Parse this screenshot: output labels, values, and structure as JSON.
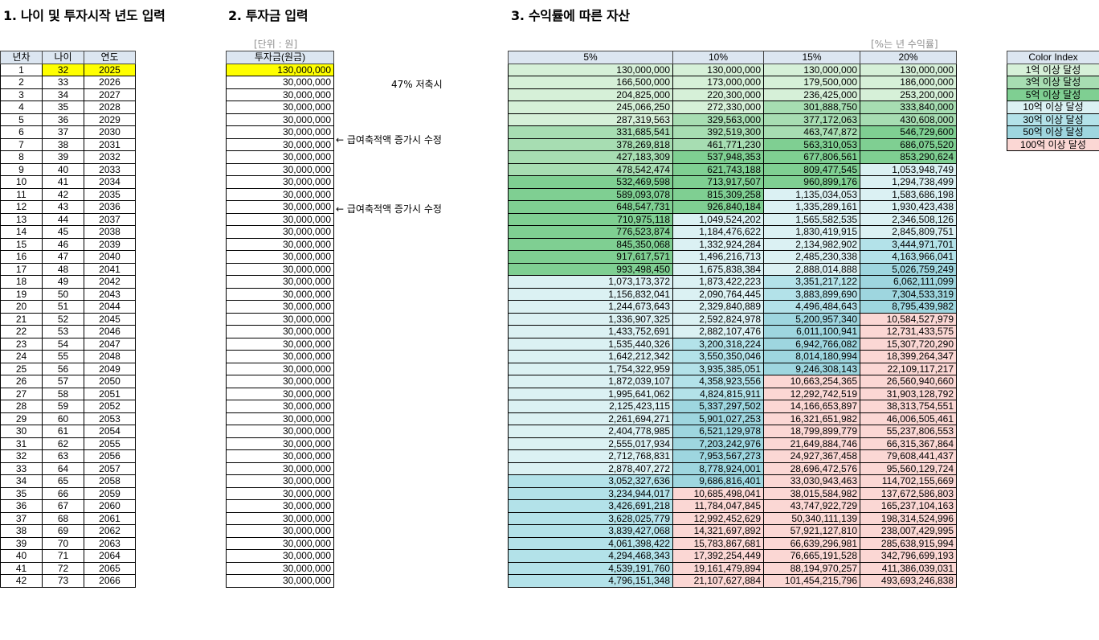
{
  "titles": {
    "section1": "1. 나이 및 투자시작 년도 입력",
    "section2": "2. 투자금 입력",
    "section3": "3. 수익률에 따른 자산"
  },
  "units": {
    "invest": "[단위 : 원]",
    "rate": "[%는 년 수익률]"
  },
  "notes": {
    "savings": "47% 저축시",
    "adjust1": "← 급여축적액 증가시 수정",
    "adjust2": "← 급여축적액 증가시 수정"
  },
  "headers": {
    "year_no": "년차",
    "age": "나이",
    "year": "연도",
    "invest": "투자금(원금)",
    "rates": [
      "5%",
      "10%",
      "15%",
      "20%"
    ],
    "legend": "Color Index"
  },
  "legend_items": [
    {
      "label": "1억 이상 달성",
      "color": "#d6f0d8"
    },
    {
      "label": "3억 이상 달성",
      "color": "#a7ddb2"
    },
    {
      "label": "5억 이상 달성",
      "color": "#7fcf92"
    },
    {
      "label": "10억 이상 달성",
      "color": "#dbf1f3"
    },
    {
      "label": "30억 이상 달성",
      "color": "#b3e2e9"
    },
    {
      "label": "50억 이상 달성",
      "color": "#9ed6df"
    },
    {
      "label": "100억 이상 달성",
      "color": "#fbd7d4"
    }
  ],
  "rows": [
    {
      "n": "1",
      "age": "32",
      "year": "2025",
      "inv": "130,000,000",
      "v": [
        "130,000,000",
        "130,000,000",
        "130,000,000",
        "130,000,000"
      ]
    },
    {
      "n": "2",
      "age": "33",
      "year": "2026",
      "inv": "30,000,000",
      "v": [
        "166,500,000",
        "173,000,000",
        "179,500,000",
        "186,000,000"
      ]
    },
    {
      "n": "3",
      "age": "34",
      "year": "2027",
      "inv": "30,000,000",
      "v": [
        "204,825,000",
        "220,300,000",
        "236,425,000",
        "253,200,000"
      ]
    },
    {
      "n": "4",
      "age": "35",
      "year": "2028",
      "inv": "30,000,000",
      "v": [
        "245,066,250",
        "272,330,000",
        "301,888,750",
        "333,840,000"
      ]
    },
    {
      "n": "5",
      "age": "36",
      "year": "2029",
      "inv": "30,000,000",
      "v": [
        "287,319,563",
        "329,563,000",
        "377,172,063",
        "430,608,000"
      ]
    },
    {
      "n": "6",
      "age": "37",
      "year": "2030",
      "inv": "30,000,000",
      "v": [
        "331,685,541",
        "392,519,300",
        "463,747,872",
        "546,729,600"
      ]
    },
    {
      "n": "7",
      "age": "38",
      "year": "2031",
      "inv": "30,000,000",
      "v": [
        "378,269,818",
        "461,771,230",
        "563,310,053",
        "686,075,520"
      ]
    },
    {
      "n": "8",
      "age": "39",
      "year": "2032",
      "inv": "30,000,000",
      "v": [
        "427,183,309",
        "537,948,353",
        "677,806,561",
        "853,290,624"
      ]
    },
    {
      "n": "9",
      "age": "40",
      "year": "2033",
      "inv": "30,000,000",
      "v": [
        "478,542,474",
        "621,743,188",
        "809,477,545",
        "1,053,948,749"
      ]
    },
    {
      "n": "10",
      "age": "41",
      "year": "2034",
      "inv": "30,000,000",
      "v": [
        "532,469,598",
        "713,917,507",
        "960,899,176",
        "1,294,738,499"
      ]
    },
    {
      "n": "11",
      "age": "42",
      "year": "2035",
      "inv": "30,000,000",
      "v": [
        "589,093,078",
        "815,309,258",
        "1,135,034,053",
        "1,583,686,198"
      ]
    },
    {
      "n": "12",
      "age": "43",
      "year": "2036",
      "inv": "30,000,000",
      "v": [
        "648,547,731",
        "926,840,184",
        "1,335,289,161",
        "1,930,423,438"
      ]
    },
    {
      "n": "13",
      "age": "44",
      "year": "2037",
      "inv": "30,000,000",
      "v": [
        "710,975,118",
        "1,049,524,202",
        "1,565,582,535",
        "2,346,508,126"
      ]
    },
    {
      "n": "14",
      "age": "45",
      "year": "2038",
      "inv": "30,000,000",
      "v": [
        "776,523,874",
        "1,184,476,622",
        "1,830,419,915",
        "2,845,809,751"
      ]
    },
    {
      "n": "15",
      "age": "46",
      "year": "2039",
      "inv": "30,000,000",
      "v": [
        "845,350,068",
        "1,332,924,284",
        "2,134,982,902",
        "3,444,971,701"
      ]
    },
    {
      "n": "16",
      "age": "47",
      "year": "2040",
      "inv": "30,000,000",
      "v": [
        "917,617,571",
        "1,496,216,713",
        "2,485,230,338",
        "4,163,966,041"
      ]
    },
    {
      "n": "17",
      "age": "48",
      "year": "2041",
      "inv": "30,000,000",
      "v": [
        "993,498,450",
        "1,675,838,384",
        "2,888,014,888",
        "5,026,759,249"
      ]
    },
    {
      "n": "18",
      "age": "49",
      "year": "2042",
      "inv": "30,000,000",
      "v": [
        "1,073,173,372",
        "1,873,422,223",
        "3,351,217,122",
        "6,062,111,099"
      ]
    },
    {
      "n": "19",
      "age": "50",
      "year": "2043",
      "inv": "30,000,000",
      "v": [
        "1,156,832,041",
        "2,090,764,445",
        "3,883,899,690",
        "7,304,533,319"
      ]
    },
    {
      "n": "20",
      "age": "51",
      "year": "2044",
      "inv": "30,000,000",
      "v": [
        "1,244,673,643",
        "2,329,840,889",
        "4,496,484,643",
        "8,795,439,982"
      ]
    },
    {
      "n": "21",
      "age": "52",
      "year": "2045",
      "inv": "30,000,000",
      "v": [
        "1,336,907,325",
        "2,592,824,978",
        "5,200,957,340",
        "10,584,527,979"
      ]
    },
    {
      "n": "22",
      "age": "53",
      "year": "2046",
      "inv": "30,000,000",
      "v": [
        "1,433,752,691",
        "2,882,107,476",
        "6,011,100,941",
        "12,731,433,575"
      ]
    },
    {
      "n": "23",
      "age": "54",
      "year": "2047",
      "inv": "30,000,000",
      "v": [
        "1,535,440,326",
        "3,200,318,224",
        "6,942,766,082",
        "15,307,720,290"
      ]
    },
    {
      "n": "24",
      "age": "55",
      "year": "2048",
      "inv": "30,000,000",
      "v": [
        "1,642,212,342",
        "3,550,350,046",
        "8,014,180,994",
        "18,399,264,347"
      ]
    },
    {
      "n": "25",
      "age": "56",
      "year": "2049",
      "inv": "30,000,000",
      "v": [
        "1,754,322,959",
        "3,935,385,051",
        "9,246,308,143",
        "22,109,117,217"
      ]
    },
    {
      "n": "26",
      "age": "57",
      "year": "2050",
      "inv": "30,000,000",
      "v": [
        "1,872,039,107",
        "4,358,923,556",
        "10,663,254,365",
        "26,560,940,660"
      ]
    },
    {
      "n": "27",
      "age": "58",
      "year": "2051",
      "inv": "30,000,000",
      "v": [
        "1,995,641,062",
        "4,824,815,911",
        "12,292,742,519",
        "31,903,128,792"
      ]
    },
    {
      "n": "28",
      "age": "59",
      "year": "2052",
      "inv": "30,000,000",
      "v": [
        "2,125,423,115",
        "5,337,297,502",
        "14,166,653,897",
        "38,313,754,551"
      ]
    },
    {
      "n": "29",
      "age": "60",
      "year": "2053",
      "inv": "30,000,000",
      "v": [
        "2,261,694,271",
        "5,901,027,253",
        "16,321,651,982",
        "46,006,505,461"
      ]
    },
    {
      "n": "30",
      "age": "61",
      "year": "2054",
      "inv": "30,000,000",
      "v": [
        "2,404,778,985",
        "6,521,129,978",
        "18,799,899,779",
        "55,237,806,553"
      ]
    },
    {
      "n": "31",
      "age": "62",
      "year": "2055",
      "inv": "30,000,000",
      "v": [
        "2,555,017,934",
        "7,203,242,976",
        "21,649,884,746",
        "66,315,367,864"
      ]
    },
    {
      "n": "32",
      "age": "63",
      "year": "2056",
      "inv": "30,000,000",
      "v": [
        "2,712,768,831",
        "7,953,567,273",
        "24,927,367,458",
        "79,608,441,437"
      ]
    },
    {
      "n": "33",
      "age": "64",
      "year": "2057",
      "inv": "30,000,000",
      "v": [
        "2,878,407,272",
        "8,778,924,001",
        "28,696,472,576",
        "95,560,129,724"
      ]
    },
    {
      "n": "34",
      "age": "65",
      "year": "2058",
      "inv": "30,000,000",
      "v": [
        "3,052,327,636",
        "9,686,816,401",
        "33,030,943,463",
        "114,702,155,669"
      ]
    },
    {
      "n": "35",
      "age": "66",
      "year": "2059",
      "inv": "30,000,000",
      "v": [
        "3,234,944,017",
        "10,685,498,041",
        "38,015,584,982",
        "137,672,586,803"
      ]
    },
    {
      "n": "36",
      "age": "67",
      "year": "2060",
      "inv": "30,000,000",
      "v": [
        "3,426,691,218",
        "11,784,047,845",
        "43,747,922,729",
        "165,237,104,163"
      ]
    },
    {
      "n": "37",
      "age": "68",
      "year": "2061",
      "inv": "30,000,000",
      "v": [
        "3,628,025,779",
        "12,992,452,629",
        "50,340,111,139",
        "198,314,524,996"
      ]
    },
    {
      "n": "38",
      "age": "69",
      "year": "2062",
      "inv": "30,000,000",
      "v": [
        "3,839,427,068",
        "14,321,697,892",
        "57,921,127,810",
        "238,007,429,995"
      ]
    },
    {
      "n": "39",
      "age": "70",
      "year": "2063",
      "inv": "30,000,000",
      "v": [
        "4,061,398,422",
        "15,783,867,681",
        "66,639,296,981",
        "285,638,915,994"
      ]
    },
    {
      "n": "40",
      "age": "71",
      "year": "2064",
      "inv": "30,000,000",
      "v": [
        "4,294,468,343",
        "17,392,254,449",
        "76,665,191,528",
        "342,796,699,193"
      ]
    },
    {
      "n": "41",
      "age": "72",
      "year": "2065",
      "inv": "30,000,000",
      "v": [
        "4,539,191,760",
        "19,161,479,894",
        "88,194,970,257",
        "411,386,039,031"
      ]
    },
    {
      "n": "42",
      "age": "73",
      "year": "2066",
      "inv": "30,000,000",
      "v": [
        "4,796,151,348",
        "21,107,627,884",
        "101,454,215,796",
        "493,693,246,838"
      ]
    }
  ]
}
